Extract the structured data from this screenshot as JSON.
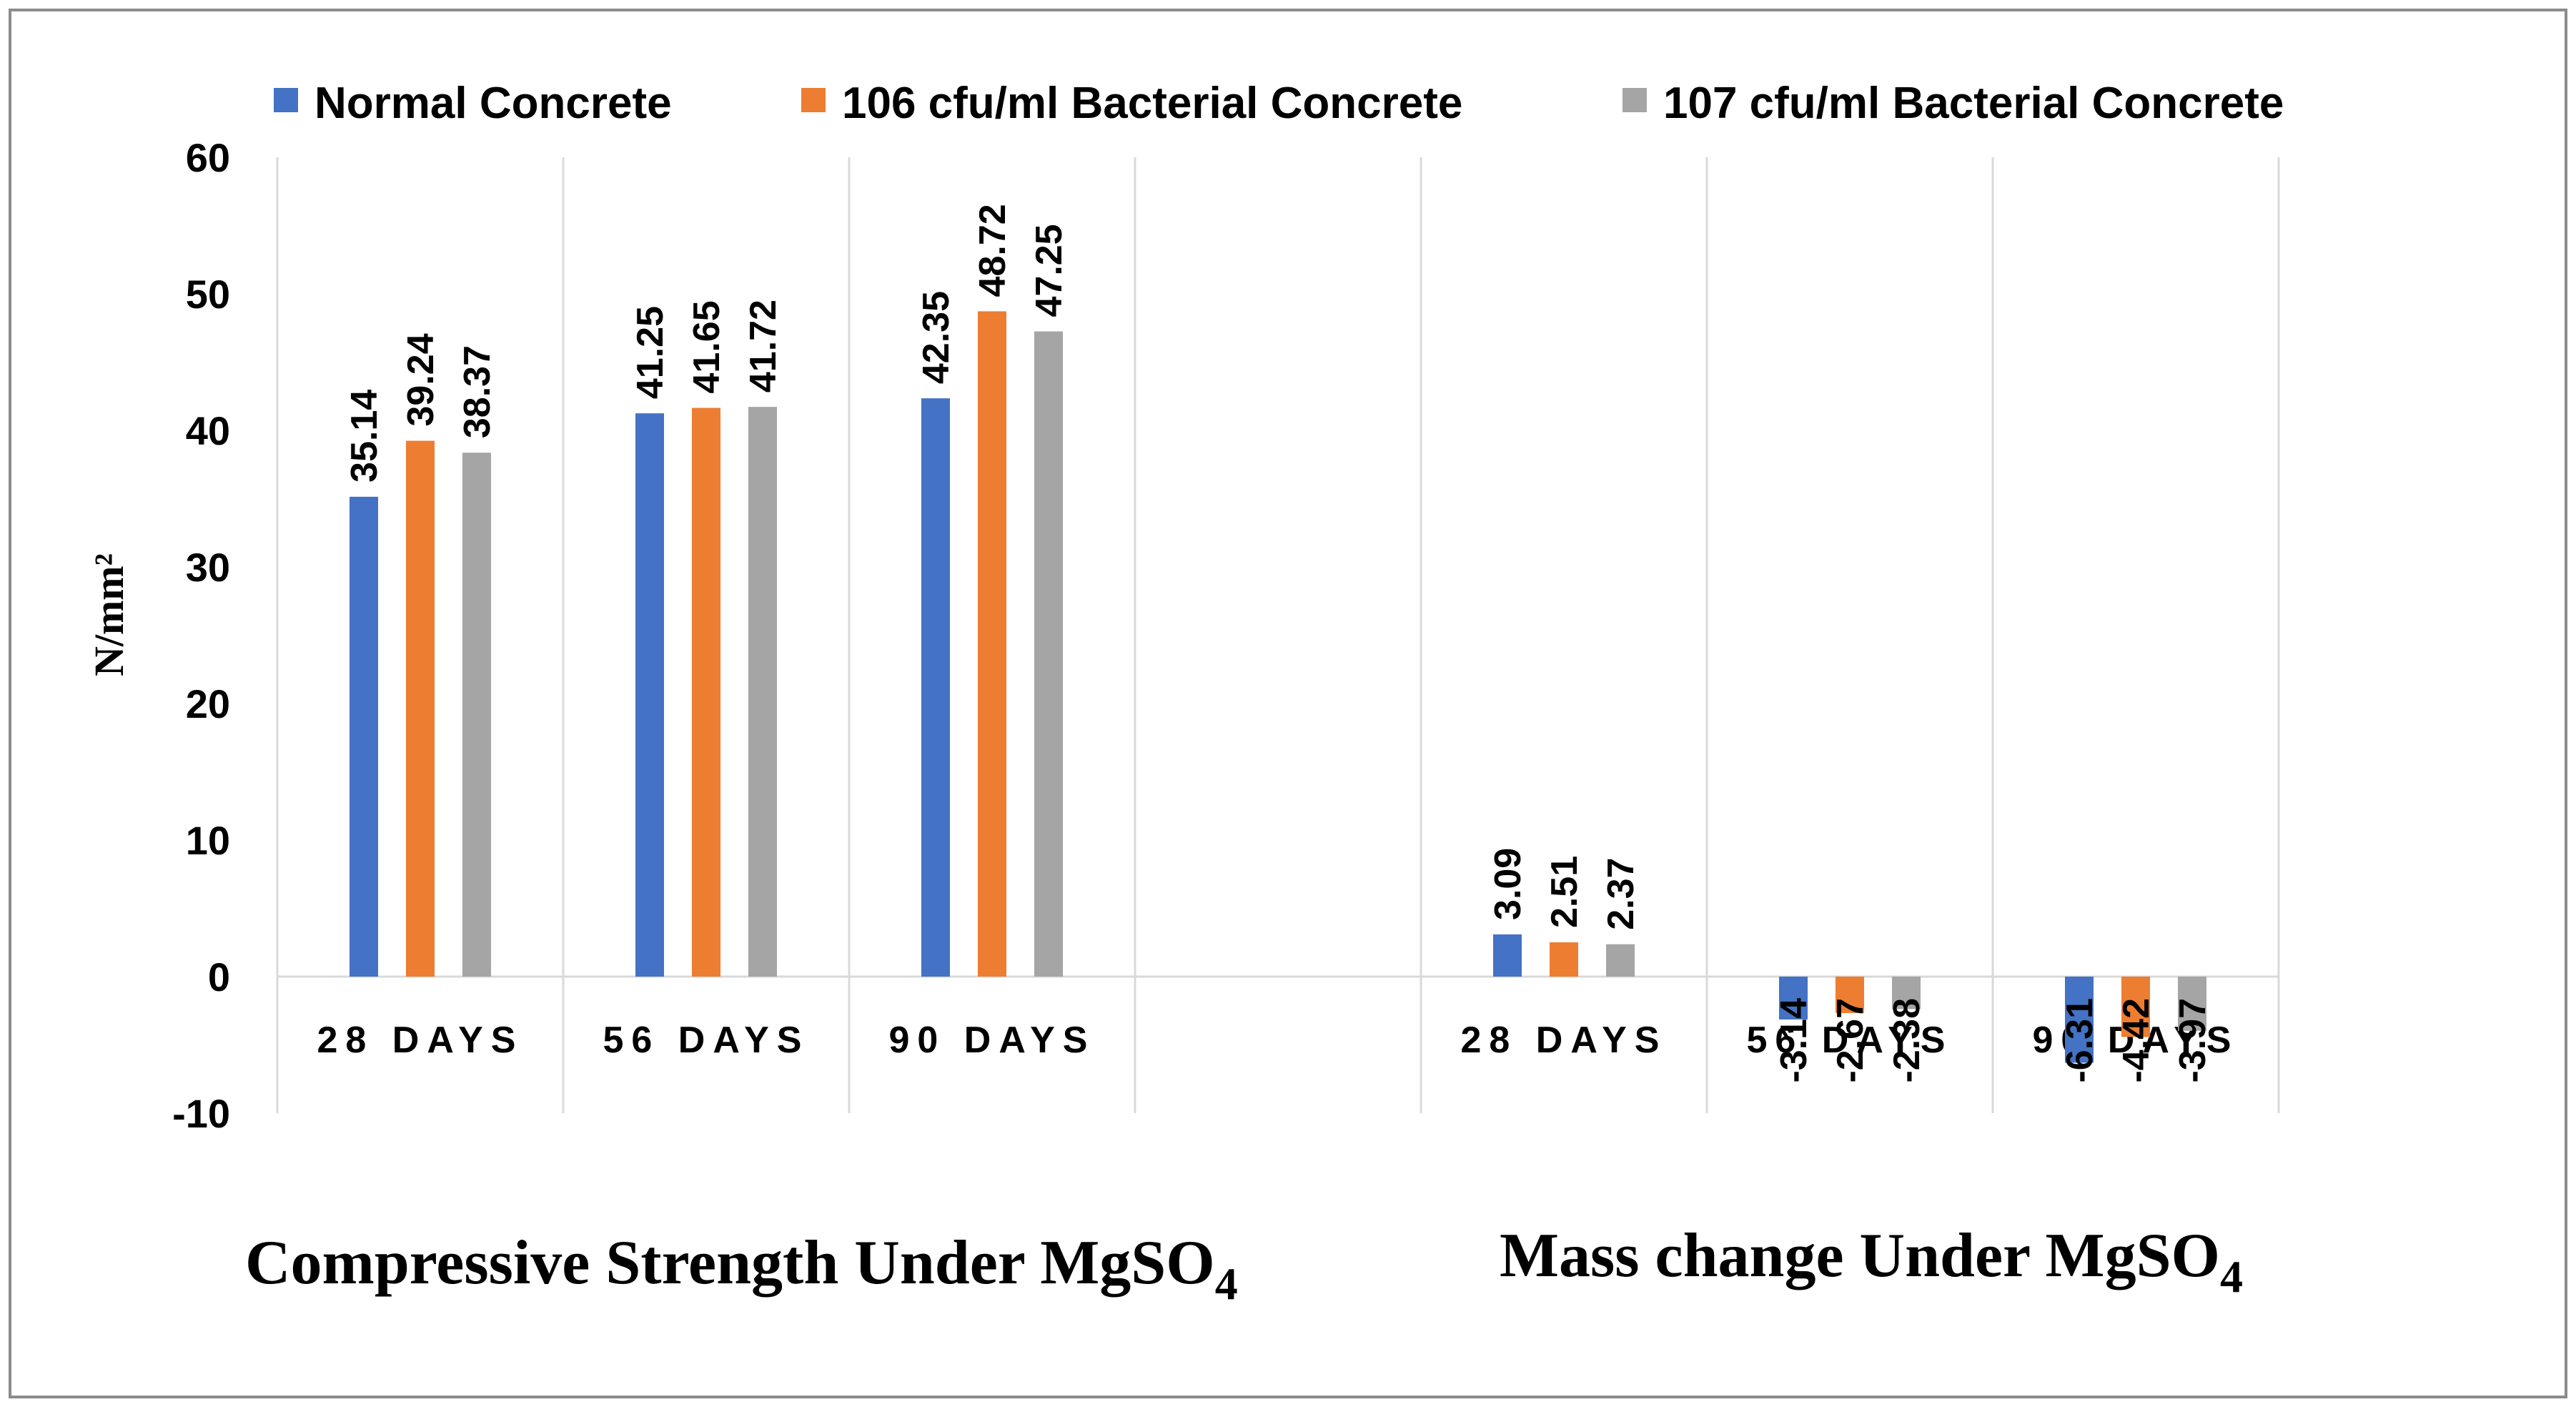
{
  "chart_data": {
    "type": "bar",
    "categories": [
      "28 DAYS",
      "56 DAYS",
      "90 DAYS",
      "",
      "28 DAYS",
      "56 DAYS",
      "90 DAYS"
    ],
    "series": [
      {
        "name": "Normal Concrete",
        "color": "#4472C4",
        "values": [
          35.14,
          41.25,
          42.35,
          null,
          3.09,
          -3.14,
          -6.31
        ],
        "labels": [
          "35.14",
          "41.25",
          "42.35",
          "",
          "3.09",
          "-3.14",
          "-6.31"
        ]
      },
      {
        "name": "106 cfu/ml Bacterial Concrete",
        "color": "#ED7D31",
        "values": [
          39.24,
          41.65,
          48.72,
          null,
          2.51,
          -2.67,
          -4.42
        ],
        "labels": [
          "39.24",
          "41.65",
          "48.72",
          "",
          "2.51",
          "-2.67",
          "-4.42"
        ]
      },
      {
        "name": "107 cfu/ml Bacterial Concrete",
        "color": "#A5A5A5",
        "values": [
          38.37,
          41.72,
          47.25,
          null,
          2.37,
          -2.38,
          -3.97
        ],
        "labels": [
          "38.37",
          "41.72",
          "47.25",
          "",
          "2.37",
          "-2.38",
          "-3.97"
        ]
      }
    ],
    "ylabel": "N/mm²",
    "ylim": [
      -10,
      60
    ],
    "yticks": [
      "-10",
      "0",
      "10",
      "20",
      "30",
      "40",
      "50",
      "60"
    ],
    "ytick_values": [
      -10,
      0,
      10,
      20,
      30,
      40,
      50,
      60
    ],
    "grid": "vertical separators between categories",
    "legend_position": "top",
    "groups": [
      {
        "title": "Compressive Strength Under MgSO",
        "subscript": "4"
      },
      {
        "title": "Mass change Under MgSO",
        "subscript": "4"
      }
    ]
  }
}
